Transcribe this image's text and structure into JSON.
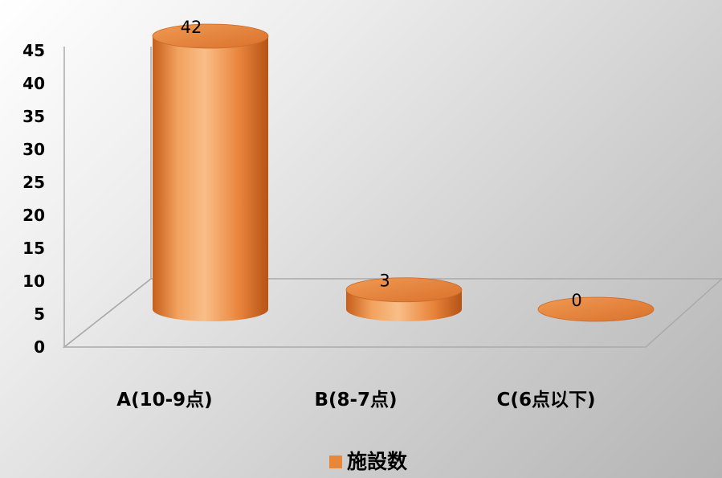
{
  "chart_data": {
    "type": "bar",
    "style": "3d-cylinder",
    "categories": [
      "A(10-9点)",
      "B(8-7点)",
      "C(6点以下)"
    ],
    "series": [
      {
        "name": "施設数",
        "values": [
          42,
          3,
          0
        ],
        "color": "#E8873A"
      }
    ],
    "data_labels": [
      "42",
      "3",
      "0"
    ],
    "ylim": [
      0,
      45
    ],
    "yticks": [
      0,
      5,
      10,
      15,
      20,
      25,
      30,
      35,
      40,
      45
    ],
    "grid": false,
    "legend_position": "bottom"
  }
}
